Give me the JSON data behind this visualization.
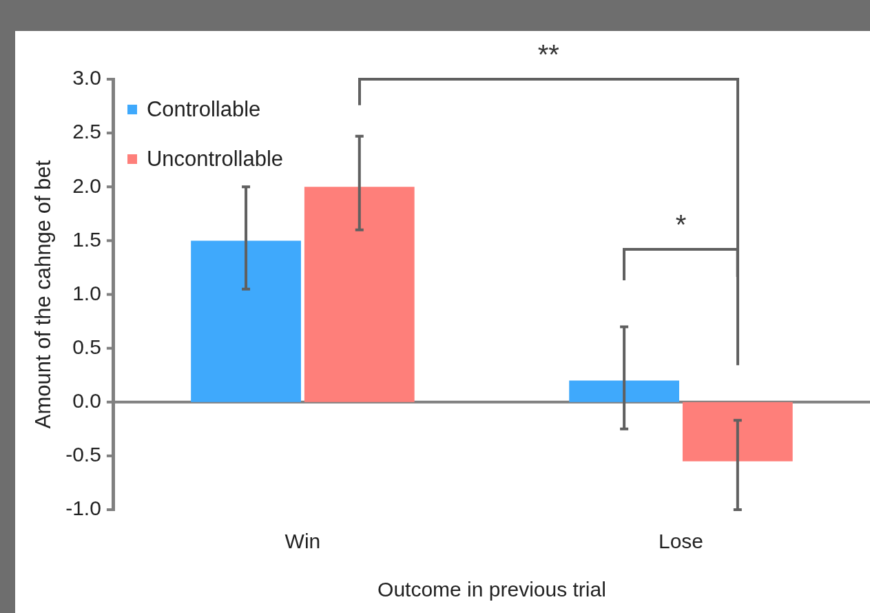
{
  "chart_data": {
    "type": "bar",
    "xlabel": "Outcome in previous trial",
    "ylabel": "Amount of the cahnge of bet",
    "categories": [
      "Win",
      "Lose"
    ],
    "series": [
      {
        "name": "Controllable",
        "color": "#3fa9fc",
        "values": [
          1.5,
          0.2
        ],
        "errors": [
          [
            1.05,
            2.0
          ],
          [
            -0.25,
            0.7
          ]
        ]
      },
      {
        "name": "Uncontrollable",
        "color": "#fe7f7a",
        "values": [
          2.0,
          -0.55
        ],
        "errors": [
          [
            1.6,
            2.47
          ],
          [
            -1.0,
            -0.17
          ]
        ]
      }
    ],
    "ylim": [
      -1.0,
      3.0
    ],
    "yticks": [
      {
        "value": -1,
        "label": "-1.0"
      },
      {
        "value": -0.5,
        "label": "-0.5"
      },
      {
        "value": 0,
        "label": "0.0"
      },
      {
        "value": 0.5,
        "label": "0.5"
      },
      {
        "value": 1,
        "label": "1.0"
      },
      {
        "value": 1.5,
        "label": "1.5"
      },
      {
        "value": 2,
        "label": "2.0"
      },
      {
        "value": 2.5,
        "label": "2.5"
      },
      {
        "value": 3,
        "label": "3.0"
      }
    ],
    "grid": false,
    "ref_lines": [
      {
        "axis": "y",
        "value": 0,
        "color": "#808080"
      }
    ],
    "legend": "top left",
    "annotations": [
      "**",
      "*"
    ]
  }
}
